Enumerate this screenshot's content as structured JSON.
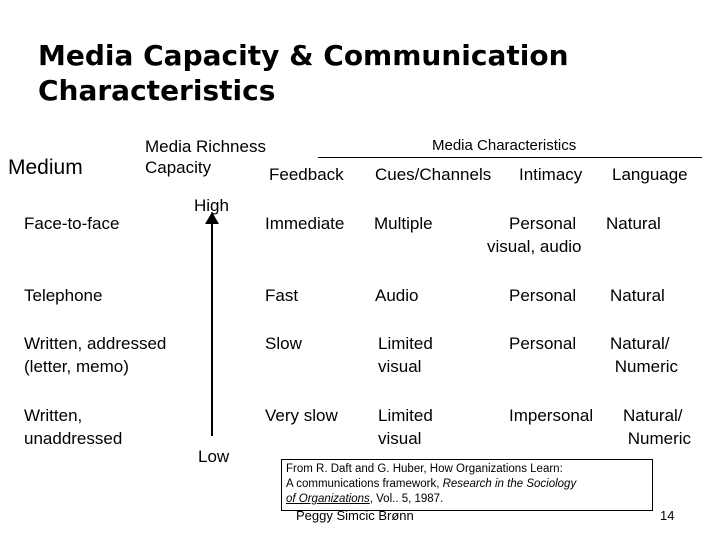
{
  "title": "Media Capacity & Communication Characteristics",
  "headers": {
    "medium": "Medium",
    "richness": "Media Richness\nCapacity",
    "characteristics": "Media Characteristics",
    "feedback": "Feedback",
    "cues": "Cues/Channels",
    "intimacy": "Intimacy",
    "language": "Language"
  },
  "axis": {
    "high": "High",
    "low": "Low"
  },
  "rows": [
    {
      "medium": "Face-to-face",
      "feedback": "Immediate",
      "cues": "Multiple",
      "intimacy": "Personal",
      "language": "Natural",
      "cues_extra": "visual, audio"
    },
    {
      "medium": "Telephone",
      "feedback": "Fast",
      "cues": "Audio",
      "intimacy": "Personal",
      "language": "Natural"
    },
    {
      "medium": "Written, addressed\n(letter, memo)",
      "feedback": "Slow",
      "cues": "Limited\nvisual",
      "intimacy": "Personal",
      "language": "Natural/\n Numeric"
    },
    {
      "medium": "Written,\nunaddressed",
      "feedback": "Very slow",
      "cues": "Limited\nvisual",
      "intimacy": "Impersonal",
      "language": "Natural/\n Numeric"
    }
  ],
  "citation": {
    "line1": "From R. Daft and G. Huber, How Organizations Learn:",
    "line2_prefix": "A communications framework, ",
    "line2_italic": "Research in the Sociology",
    "line3_italic": "of Organizations",
    "line3_suffix": ", Vol.. 5, 1987."
  },
  "footer": "Peggy Simcic Brønn",
  "page_number": "14"
}
